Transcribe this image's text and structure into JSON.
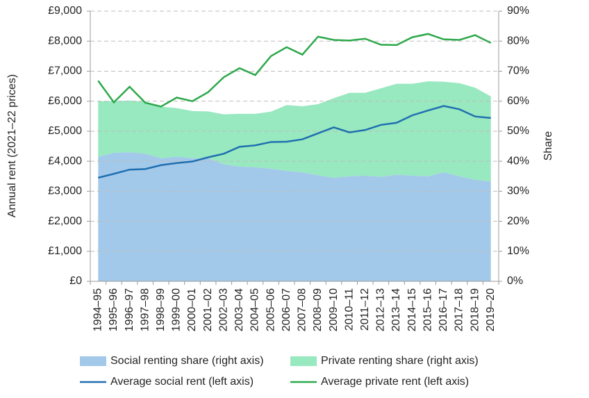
{
  "chart_data": {
    "type": "line",
    "y_label": "Annual rent (2021–22 prices)",
    "y2_label": "Share",
    "categories": [
      "1994–95",
      "1995–96",
      "1996–97",
      "1997–98",
      "1998–99",
      "1999–00",
      "2000–01",
      "2001–02",
      "2002–03",
      "2003–04",
      "2004–05",
      "2005–06",
      "2006–07",
      "2007–08",
      "2008–09",
      "2009–10",
      "2010–11",
      "2011–12",
      "2012–13",
      "2013–14",
      "2014–15",
      "2015–16",
      "2016–17",
      "2017–18",
      "2018–19",
      "2019–20"
    ],
    "series": [
      {
        "name": "Social renting share (right axis)",
        "type": "area",
        "axis": "y2",
        "color": "#a3c9ea",
        "values": [
          41.5,
          42.8,
          43,
          42.5,
          41,
          41.5,
          41,
          41,
          39,
          38.2,
          38,
          37.5,
          36.8,
          36.3,
          35.3,
          34.5,
          35,
          35.2,
          34.8,
          35.5,
          35.2,
          35,
          36.3,
          35,
          33.8,
          33.3
        ]
      },
      {
        "name": "Private renting share (right axis)",
        "type": "area",
        "axis": "y2",
        "color": "#98e8c0",
        "values": [
          18.5,
          17.2,
          17.2,
          17.3,
          17.2,
          16.2,
          15.7,
          15.6,
          16.6,
          17.6,
          17.8,
          19,
          21.9,
          22,
          23.7,
          26.5,
          27.8,
          27.6,
          29.5,
          30.3,
          30.6,
          31.6,
          30.2,
          31,
          30.7,
          28.3
        ]
      },
      {
        "name": "Average social rent (left axis)",
        "type": "line",
        "axis": "y",
        "color": "#1f6fb0",
        "values": [
          3450,
          3580,
          3720,
          3740,
          3870,
          3940,
          3990,
          4130,
          4250,
          4480,
          4530,
          4640,
          4650,
          4730,
          4930,
          5130,
          4960,
          5040,
          5210,
          5280,
          5530,
          5690,
          5840,
          5730,
          5490,
          5440
        ]
      },
      {
        "name": "Average private rent (left axis)",
        "type": "line",
        "axis": "y",
        "color": "#2ca84a",
        "values": [
          6680,
          5960,
          6480,
          5950,
          5820,
          6120,
          6000,
          6300,
          6800,
          7100,
          6870,
          7500,
          7800,
          7550,
          8150,
          8040,
          8020,
          8080,
          7880,
          7870,
          8130,
          8240,
          8060,
          8040,
          8200,
          7940
        ]
      }
    ],
    "stacked_areas": true,
    "ylim": [
      0,
      9000
    ],
    "yticks": [
      {
        "value": 0,
        "label": "£0"
      },
      {
        "value": 1000,
        "label": "£1,000"
      },
      {
        "value": 2000,
        "label": "£2,000"
      },
      {
        "value": 3000,
        "label": "£3,000"
      },
      {
        "value": 4000,
        "label": "£4,000"
      },
      {
        "value": 5000,
        "label": "£5,000"
      },
      {
        "value": 6000,
        "label": "£6,000"
      },
      {
        "value": 7000,
        "label": "£7,000"
      },
      {
        "value": 8000,
        "label": "£8,000"
      },
      {
        "value": 9000,
        "label": "£9,000"
      }
    ],
    "y2lim": [
      0,
      90
    ],
    "y2ticks": [
      {
        "value": 0,
        "label": "0%"
      },
      {
        "value": 10,
        "label": "10%"
      },
      {
        "value": 20,
        "label": "20%"
      },
      {
        "value": 30,
        "label": "30%"
      },
      {
        "value": 40,
        "label": "40%"
      },
      {
        "value": 50,
        "label": "50%"
      },
      {
        "value": 60,
        "label": "60%"
      },
      {
        "value": 70,
        "label": "70%"
      },
      {
        "value": 80,
        "label": "80%"
      },
      {
        "value": 90,
        "label": "90%"
      }
    ],
    "grid": true,
    "legend": "bottom"
  }
}
